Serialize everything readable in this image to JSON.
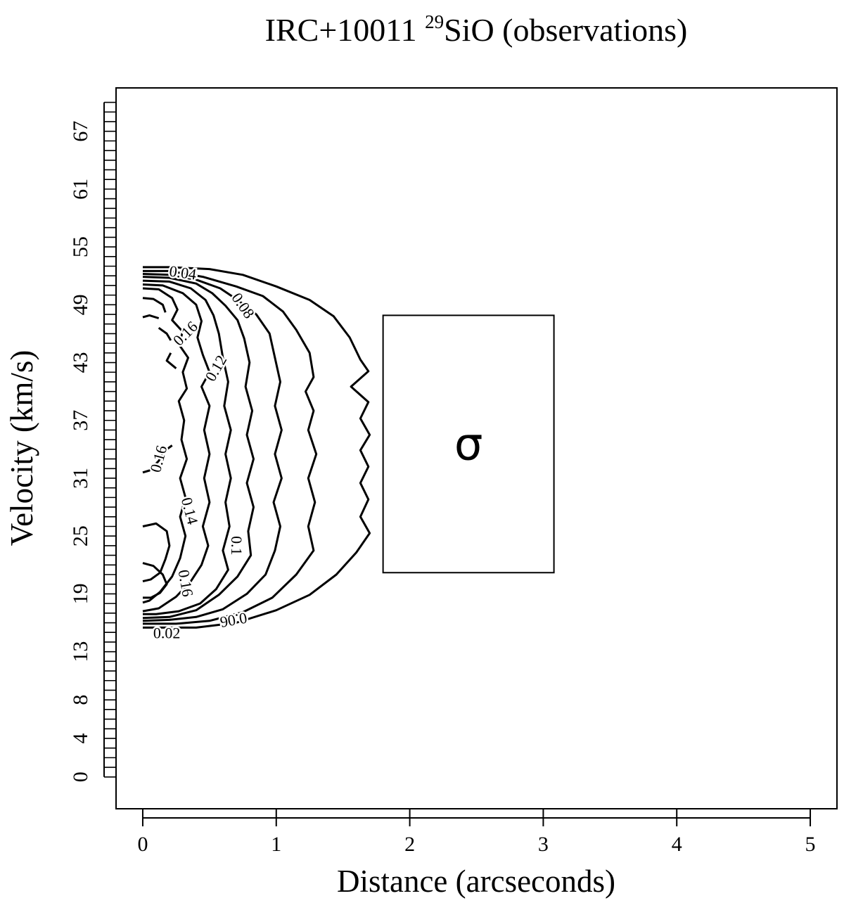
{
  "chart_data": {
    "type": "contour",
    "title": {
      "prefix": "IRC+10011 ",
      "superscript": "29",
      "suffix": "SiO (observations)"
    },
    "xlabel": "Distance (arcseconds)",
    "ylabel": "Velocity (km/s)",
    "xlim": [
      -0.2,
      5.2
    ],
    "ylim": [
      -3.3,
      71.5
    ],
    "x_ticks": [
      0,
      1,
      2,
      3,
      4,
      5
    ],
    "y_ticks": [
      0,
      4,
      8,
      13,
      19,
      25,
      31,
      37,
      43,
      49,
      55,
      61,
      67
    ],
    "y_minor_tick_step": 1,
    "y_minor_tick_count": 71,
    "legend_box": {
      "symbol": "σ",
      "x_range": [
        1.8,
        3.08
      ],
      "y_range": [
        21.2,
        47.9
      ]
    },
    "contour_levels": [
      0.02,
      0.04,
      0.06,
      0.08,
      0.1,
      0.12,
      0.14,
      0.16
    ],
    "contour_labels": [
      {
        "text": "0.04",
        "x": 0.3,
        "y": 52.3,
        "angle": 8
      },
      {
        "text": "0.08",
        "x": 0.75,
        "y": 48.9,
        "angle": 55
      },
      {
        "text": "0.16",
        "x": 0.32,
        "y": 46.0,
        "angle": -45
      },
      {
        "text": "0.12",
        "x": 0.55,
        "y": 42.4,
        "angle": -60
      },
      {
        "text": "0.16",
        "x": 0.12,
        "y": 33.0,
        "angle": -75
      },
      {
        "text": "0.14",
        "x": 0.35,
        "y": 27.6,
        "angle": 75
      },
      {
        "text": "0.1",
        "x": 0.7,
        "y": 24.0,
        "angle": 90
      },
      {
        "text": "0.16",
        "x": 0.32,
        "y": 20.1,
        "angle": 80
      },
      {
        "text": "0.06",
        "x": 0.68,
        "y": 16.3,
        "angle": 170
      },
      {
        "text": "0.02",
        "x": 0.18,
        "y": 14.9,
        "angle": 0
      }
    ],
    "contours": [
      {
        "level": 0.02,
        "points": [
          [
            0,
            52.9
          ],
          [
            0.2,
            52.9
          ],
          [
            0.5,
            52.7
          ],
          [
            0.75,
            52.1
          ],
          [
            1.0,
            50.9
          ],
          [
            1.25,
            49.5
          ],
          [
            1.43,
            47.8
          ],
          [
            1.55,
            45.6
          ],
          [
            1.63,
            43.3
          ],
          [
            1.69,
            42.1
          ],
          [
            1.56,
            40.5
          ],
          [
            1.69,
            38.9
          ],
          [
            1.63,
            37.2
          ],
          [
            1.7,
            35.5
          ],
          [
            1.63,
            33.9
          ],
          [
            1.69,
            32.2
          ],
          [
            1.63,
            30.5
          ],
          [
            1.69,
            28.8
          ],
          [
            1.63,
            27.0
          ],
          [
            1.7,
            25.3
          ],
          [
            1.6,
            23.3
          ],
          [
            1.45,
            21.0
          ],
          [
            1.25,
            18.9
          ],
          [
            1.0,
            17.3
          ],
          [
            0.7,
            16.0
          ],
          [
            0.4,
            15.5
          ],
          [
            0,
            15.5
          ]
        ]
      },
      {
        "level": 0.04,
        "points": [
          [
            0,
            52.5
          ],
          [
            0.2,
            52.5
          ],
          [
            0.45,
            51.9
          ],
          [
            0.7,
            50.9
          ],
          [
            0.9,
            49.9
          ],
          [
            1.05,
            48.3
          ],
          [
            1.15,
            46.4
          ],
          [
            1.25,
            44.0
          ],
          [
            1.28,
            41.5
          ],
          [
            1.22,
            40.0
          ],
          [
            1.28,
            38.0
          ],
          [
            1.24,
            36.0
          ],
          [
            1.3,
            33.5
          ],
          [
            1.24,
            31.0
          ],
          [
            1.29,
            28.5
          ],
          [
            1.24,
            26.0
          ],
          [
            1.28,
            23.5
          ],
          [
            1.15,
            21.0
          ],
          [
            0.97,
            18.6
          ],
          [
            0.75,
            17.1
          ],
          [
            0.5,
            16.2
          ],
          [
            0.25,
            15.9
          ],
          [
            0,
            15.9
          ]
        ]
      },
      {
        "level": 0.06,
        "points": [
          [
            0,
            52.2
          ],
          [
            0.2,
            52.1
          ],
          [
            0.4,
            51.6
          ],
          [
            0.58,
            50.7
          ],
          [
            0.72,
            49.4
          ],
          [
            0.85,
            48.0
          ],
          [
            0.95,
            46.0
          ],
          [
            0.99,
            43.5
          ],
          [
            1.03,
            41.0
          ],
          [
            0.99,
            38.5
          ],
          [
            1.04,
            36.0
          ],
          [
            0.99,
            33.5
          ],
          [
            1.04,
            31.0
          ],
          [
            0.98,
            28.5
          ],
          [
            1.03,
            26.0
          ],
          [
            0.99,
            23.5
          ],
          [
            0.92,
            21.0
          ],
          [
            0.78,
            19.0
          ],
          [
            0.6,
            17.4
          ],
          [
            0.4,
            16.6
          ],
          [
            0.2,
            16.3
          ],
          [
            0,
            16.2
          ]
        ]
      },
      {
        "level": 0.08,
        "points": [
          [
            0,
            51.9
          ],
          [
            0.2,
            51.8
          ],
          [
            0.4,
            51.2
          ],
          [
            0.52,
            50.2
          ],
          [
            0.62,
            48.9
          ],
          [
            0.71,
            47.4
          ],
          [
            0.76,
            45.5
          ],
          [
            0.8,
            43.0
          ],
          [
            0.77,
            40.5
          ],
          [
            0.82,
            38.0
          ],
          [
            0.78,
            35.5
          ],
          [
            0.83,
            33.0
          ],
          [
            0.78,
            30.5
          ],
          [
            0.83,
            28.0
          ],
          [
            0.79,
            25.5
          ],
          [
            0.81,
            23.0
          ],
          [
            0.71,
            20.8
          ],
          [
            0.57,
            18.9
          ],
          [
            0.4,
            17.3
          ],
          [
            0.2,
            16.6
          ],
          [
            0,
            16.5
          ]
        ]
      },
      {
        "level": 0.1,
        "points": [
          [
            0,
            51.5
          ],
          [
            0.2,
            51.4
          ],
          [
            0.36,
            50.7
          ],
          [
            0.47,
            49.5
          ],
          [
            0.53,
            47.9
          ],
          [
            0.57,
            46.0
          ],
          [
            0.6,
            43.5
          ],
          [
            0.64,
            41.0
          ],
          [
            0.61,
            38.5
          ],
          [
            0.66,
            36.0
          ],
          [
            0.62,
            33.5
          ],
          [
            0.66,
            31.0
          ],
          [
            0.62,
            28.5
          ],
          [
            0.65,
            26.0
          ],
          [
            0.6,
            23.5
          ],
          [
            0.64,
            21.5
          ],
          [
            0.55,
            19.5
          ],
          [
            0.43,
            18.0
          ],
          [
            0.27,
            17.2
          ],
          [
            0.1,
            16.9
          ],
          [
            0,
            16.9
          ]
        ]
      },
      {
        "level": 0.12,
        "points": [
          [
            0,
            51.1
          ],
          [
            0.15,
            51.0
          ],
          [
            0.3,
            50.2
          ],
          [
            0.4,
            49.0
          ],
          [
            0.44,
            47.3
          ],
          [
            0.41,
            45.6
          ],
          [
            0.45,
            43.8
          ],
          [
            0.5,
            42.0
          ],
          [
            0.44,
            40.5
          ],
          [
            0.5,
            38.5
          ],
          [
            0.46,
            36.0
          ],
          [
            0.5,
            33.5
          ],
          [
            0.46,
            31.0
          ],
          [
            0.5,
            28.5
          ],
          [
            0.45,
            26.0
          ],
          [
            0.49,
            24.0
          ],
          [
            0.44,
            22.0
          ],
          [
            0.36,
            20.3
          ],
          [
            0.25,
            18.7
          ],
          [
            0.12,
            17.5
          ],
          [
            0,
            17.2
          ]
        ]
      },
      {
        "level": 0.14,
        "points": [
          [
            0,
            50.7
          ],
          [
            0.12,
            50.6
          ],
          [
            0.22,
            49.7
          ],
          [
            0.26,
            48.5
          ],
          [
            0.22,
            47.4
          ],
          [
            0.3,
            46.2
          ],
          [
            0.27,
            44.9
          ],
          [
            0.34,
            43.5
          ],
          [
            0.3,
            42.0
          ],
          [
            0.33,
            40.3
          ],
          [
            0.27,
            39.0
          ],
          [
            0.31,
            37.0
          ],
          [
            0.29,
            35.0
          ],
          [
            0.33,
            33.0
          ],
          [
            0.28,
            31.0
          ],
          [
            0.32,
            29.0
          ],
          [
            0.28,
            27.0
          ],
          [
            0.32,
            25.0
          ],
          [
            0.28,
            22.7
          ],
          [
            0.22,
            20.8
          ],
          [
            0.13,
            19.2
          ],
          [
            0.05,
            18.3
          ],
          [
            0,
            18.1
          ]
        ]
      },
      {
        "level": 0.16,
        "points": [
          [
            0,
            49.7
          ],
          [
            0.08,
            49.6
          ],
          [
            0.15,
            49.0
          ],
          [
            0.17,
            48.2
          ]
        ]
      },
      {
        "level": 0.16,
        "points": [
          [
            0,
            47.7
          ],
          [
            0.05,
            47.9
          ],
          [
            0.12,
            47.6
          ]
        ]
      },
      {
        "level": 0.16,
        "points": [
          [
            0.12,
            46.6
          ],
          [
            0.18,
            46.0
          ],
          [
            0.21,
            45.3
          ]
        ]
      },
      {
        "level": 0.16,
        "points": [
          [
            0.21,
            44.0
          ],
          [
            0.18,
            43.2
          ],
          [
            0.25,
            42.4
          ]
        ]
      },
      {
        "level": 0.16,
        "points": [
          [
            0.22,
            34.4
          ],
          [
            0.16,
            33.8
          ],
          [
            0.12,
            32.8
          ],
          [
            0.05,
            31.8
          ],
          [
            0,
            31.6
          ]
        ]
      },
      {
        "level": 0.16,
        "points": [
          [
            0,
            26.0
          ],
          [
            0.1,
            26.3
          ],
          [
            0.18,
            25.5
          ],
          [
            0.2,
            24.0
          ],
          [
            0.17,
            22.6
          ],
          [
            0.13,
            21.2
          ],
          [
            0.06,
            20.5
          ],
          [
            0,
            20.3
          ]
        ]
      },
      {
        "level": 0.16,
        "points": [
          [
            0,
            22.2
          ],
          [
            0.08,
            21.9
          ],
          [
            0.15,
            21.0
          ],
          [
            0.18,
            20.0
          ],
          [
            0.13,
            19.1
          ],
          [
            0.06,
            18.6
          ],
          [
            0,
            18.6
          ]
        ]
      }
    ]
  }
}
